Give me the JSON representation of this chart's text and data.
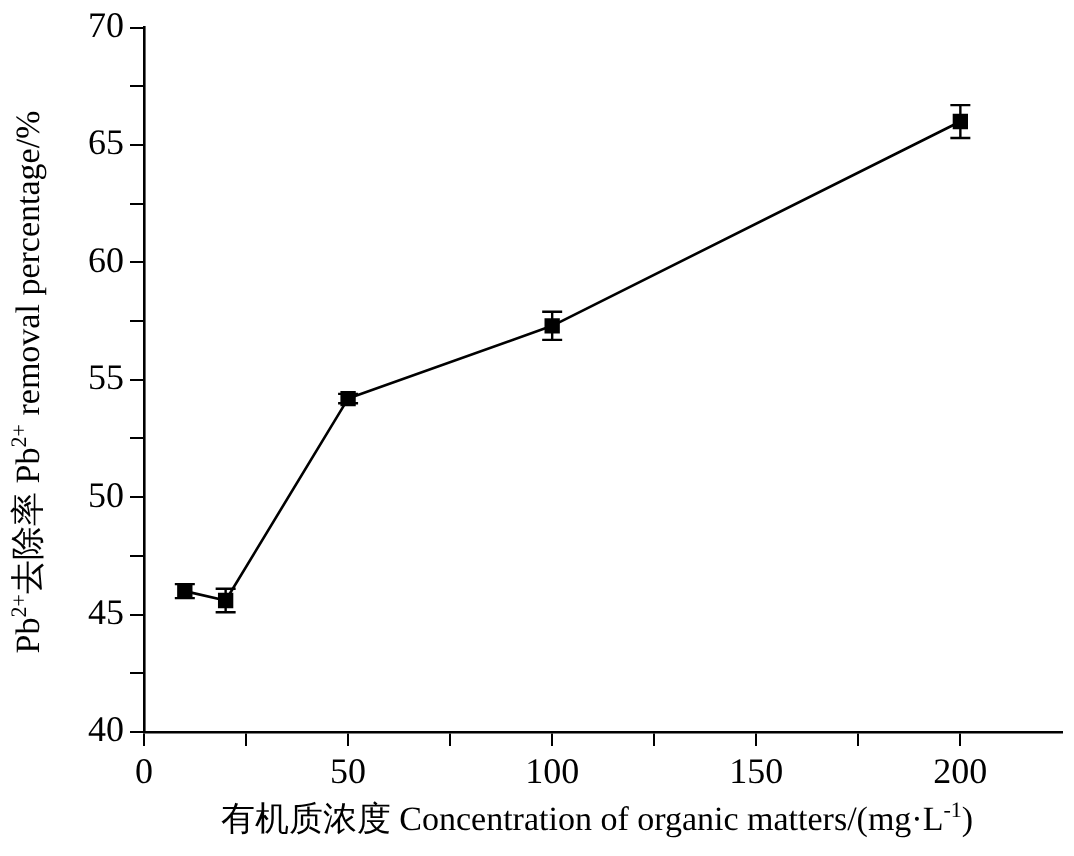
{
  "chart_data": {
    "type": "line",
    "xlabel": "有机质浓度 Concentration of organic matters/(mg·L$^{-1}$)",
    "ylabel": "Pb$^{2+}$去除率 Pb$^{2+}$ removal percentage/%",
    "x": [
      10,
      20,
      50,
      100,
      200
    ],
    "series": [
      {
        "color": "#000000",
        "values": [
          46.0,
          45.6,
          54.2,
          57.3,
          66.0
        ],
        "errors": [
          0.3,
          0.5,
          0.2,
          0.6,
          0.7
        ]
      }
    ],
    "xlim": [
      0,
      225
    ],
    "xticks": [
      0,
      {
        "value": 25,
        "label": null
      },
      50,
      {
        "value": 75,
        "label": null
      },
      100,
      {
        "value": 125,
        "label": null
      },
      150,
      {
        "value": 175,
        "label": null
      },
      200
    ],
    "ylim": [
      40,
      70
    ],
    "yticks": [
      40,
      {
        "value": 42.5,
        "label": null
      },
      45,
      {
        "value": 47.5,
        "label": null
      },
      50,
      {
        "value": 52.5,
        "label": null
      },
      55,
      {
        "value": 57.5,
        "label": null
      },
      60,
      {
        "value": 62.5,
        "label": null
      },
      65,
      {
        "value": 67.5,
        "label": null
      },
      70
    ],
    "marker": "square",
    "line_style": "solid",
    "grid": false,
    "legend": false
  }
}
